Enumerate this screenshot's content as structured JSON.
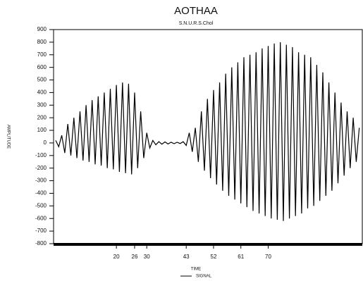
{
  "chart_data": {
    "type": "line",
    "title": "AOTHAA",
    "subtitle": "S.N.U.R.S.Chol",
    "x_label": "TIME",
    "y_label": "AMPLITUDE",
    "x": [
      0,
      1,
      2,
      3,
      4,
      5,
      6,
      7,
      8,
      9,
      10,
      11,
      12,
      13,
      14,
      15,
      16,
      17,
      18,
      19,
      20,
      21,
      22,
      23,
      24,
      25,
      26,
      27,
      28,
      29,
      30,
      31,
      32,
      33,
      34,
      35,
      36,
      37,
      38,
      39,
      40,
      41,
      42,
      43,
      44,
      45,
      46,
      47,
      48,
      49,
      50,
      51,
      52,
      53,
      54,
      55,
      56,
      57,
      58,
      59,
      60,
      61,
      62,
      63,
      64,
      65,
      66,
      67,
      68,
      69,
      70,
      71,
      72,
      73,
      74,
      75,
      76,
      77,
      78,
      79,
      80,
      81,
      82,
      83,
      84,
      85,
      86,
      87,
      88,
      89,
      90,
      91,
      92,
      93,
      94,
      95,
      96,
      97,
      98,
      99,
      100
    ],
    "series": [
      {
        "name": "SIGNAL",
        "color": "#000000",
        "values": [
          20,
          -30,
          60,
          -80,
          150,
          -100,
          200,
          -120,
          250,
          -140,
          300,
          -150,
          340,
          -170,
          370,
          -180,
          400,
          -200,
          430,
          -210,
          460,
          -230,
          480,
          -240,
          470,
          -250,
          400,
          -200,
          250,
          -120,
          80,
          -40,
          20,
          -15,
          10,
          -10,
          8,
          -8,
          6,
          -6,
          5,
          -5,
          10,
          -20,
          80,
          -70,
          120,
          -150,
          250,
          -220,
          350,
          -280,
          420,
          -330,
          480,
          -380,
          550,
          -420,
          600,
          -450,
          640,
          -480,
          680,
          -510,
          700,
          -540,
          720,
          -560,
          750,
          -580,
          770,
          -600,
          790,
          -610,
          800,
          -620,
          780,
          -600,
          760,
          -580,
          720,
          -560,
          700,
          -520,
          680,
          -500,
          620,
          -460,
          560,
          -420,
          480,
          -380,
          400,
          -320,
          320,
          -260,
          250,
          -200,
          200,
          -150,
          120
        ]
      }
    ],
    "xlim": [
      0,
      101
    ],
    "xticks": [
      20,
      26,
      30,
      43,
      52,
      61,
      70
    ],
    "ylim": [
      -800,
      900
    ],
    "yticks": [
      -800,
      -700,
      -600,
      -500,
      -400,
      -300,
      -200,
      -100,
      0,
      100,
      200,
      300,
      400,
      500,
      600,
      700,
      800,
      900
    ]
  }
}
